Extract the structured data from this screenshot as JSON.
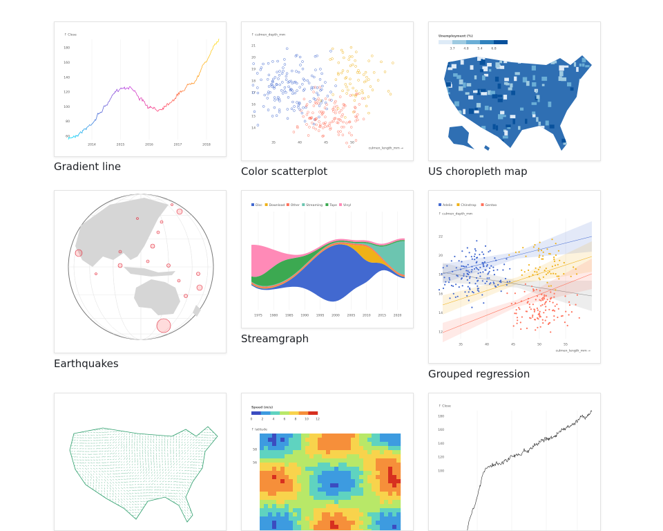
{
  "cards": [
    {
      "title": "Gradient line",
      "y_label": "↑ Close",
      "y_ticks": [
        60,
        80,
        100,
        120,
        140,
        160,
        180
      ],
      "x_ticks": [
        2014,
        2015,
        2016,
        2017,
        2018
      ]
    },
    {
      "title": "Color scatterplot",
      "y_label": "↑ culmen_depth_mm",
      "y_ticks": [
        14,
        15,
        16,
        17,
        18,
        19,
        20,
        21
      ],
      "x_ticks": [
        35,
        40,
        45,
        50
      ],
      "x_label": "culmen_length_mm →"
    },
    {
      "title": "US choropleth map",
      "legend_title": "Unemployment (%)",
      "legend_ticks": [
        3.7,
        4.8,
        5.4,
        6.8
      ]
    },
    {
      "title": "Earthquakes"
    },
    {
      "title": "Streamgraph",
      "legend": [
        "Disc",
        "Download",
        "Other",
        "Streaming",
        "Tape",
        "Vinyl"
      ],
      "x_ticks": [
        1975,
        1980,
        1985,
        1990,
        1995,
        2000,
        2005,
        2010,
        2015,
        2020
      ]
    },
    {
      "title": "Grouped regression",
      "legend": [
        "Adelie",
        "Chinstrap",
        "Gentoo"
      ],
      "y_label": "↑ culmen_depth_mm",
      "y_ticks": [
        12,
        14,
        16,
        18,
        20,
        22
      ],
      "x_ticks": [
        35,
        40,
        45,
        50,
        55
      ],
      "x_label": "culmen_length_mm →"
    },
    {},
    {
      "legend_title": "Speed (m/s)",
      "legend_ticks": [
        0,
        2,
        4,
        6,
        8,
        10,
        12
      ],
      "y_label": "↑ latitude",
      "y_ticks": [
        58,
        56
      ]
    },
    {
      "y_label": "↑ Close",
      "y_ticks": [
        180,
        160,
        140,
        120,
        100
      ]
    }
  ]
}
